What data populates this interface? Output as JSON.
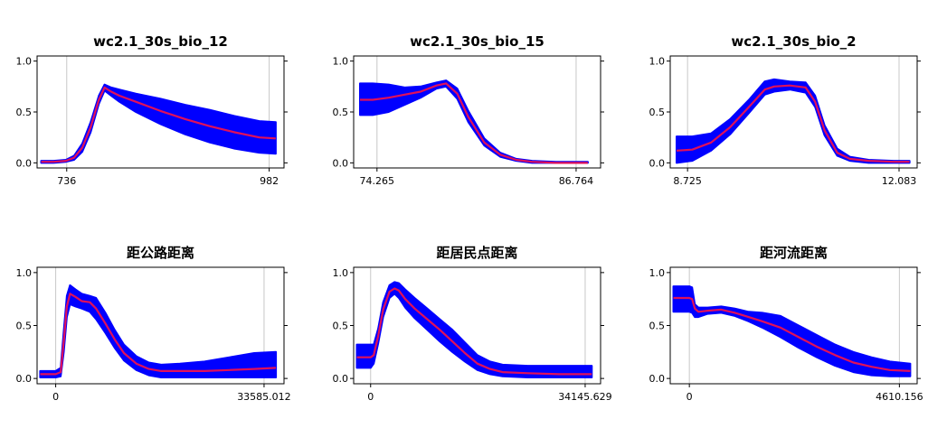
{
  "colors": {
    "band": "#0000ff",
    "mean": "#e0105a",
    "grid": "#c8c8c8"
  },
  "chart_data": [
    {
      "type": "area",
      "title": "wc2.1_30s_bio_12",
      "xlim": [
        700,
        1000
      ],
      "ylim": [
        -0.05,
        1.05
      ],
      "x_ticks": [
        {
          "v": 736,
          "label": "736"
        },
        {
          "v": 982,
          "label": "982"
        }
      ],
      "y_ticks": [
        {
          "v": 0,
          "label": "0.0"
        },
        {
          "v": 0.5,
          "label": "0.5"
        },
        {
          "v": 1,
          "label": "1.0"
        }
      ],
      "x": [
        705,
        720,
        735,
        745,
        755,
        765,
        775,
        782,
        790,
        800,
        820,
        850,
        880,
        910,
        940,
        970,
        990
      ],
      "mean": [
        0.01,
        0.01,
        0.02,
        0.05,
        0.15,
        0.35,
        0.62,
        0.74,
        0.7,
        0.66,
        0.6,
        0.51,
        0.43,
        0.36,
        0.3,
        0.25,
        0.24
      ],
      "lower": [
        0.0,
        0.0,
        0.01,
        0.03,
        0.11,
        0.3,
        0.58,
        0.71,
        0.66,
        0.6,
        0.5,
        0.38,
        0.28,
        0.2,
        0.14,
        0.1,
        0.09
      ],
      "upper": [
        0.02,
        0.02,
        0.03,
        0.07,
        0.19,
        0.4,
        0.66,
        0.77,
        0.74,
        0.72,
        0.68,
        0.63,
        0.57,
        0.52,
        0.46,
        0.41,
        0.4
      ]
    },
    {
      "type": "area",
      "title": "wc2.1_30s_bio_15",
      "xlim": [
        72.8,
        88.3
      ],
      "ylim": [
        -0.05,
        1.05
      ],
      "x_ticks": [
        {
          "v": 74.265,
          "label": "74.265"
        },
        {
          "v": 86.764,
          "label": "86.764"
        }
      ],
      "y_ticks": [
        {
          "v": 0,
          "label": "0.0"
        },
        {
          "v": 0.5,
          "label": "0.5"
        },
        {
          "v": 1,
          "label": "1.0"
        }
      ],
      "x": [
        73.2,
        74.0,
        75.0,
        76.0,
        77.0,
        78.0,
        78.6,
        79.3,
        80.0,
        81.0,
        82.0,
        83.0,
        84.0,
        85.5,
        87.5
      ],
      "mean": [
        0.62,
        0.62,
        0.64,
        0.67,
        0.7,
        0.76,
        0.78,
        0.68,
        0.45,
        0.2,
        0.08,
        0.03,
        0.01,
        0.0,
        0.0
      ],
      "lower": [
        0.47,
        0.47,
        0.5,
        0.57,
        0.64,
        0.73,
        0.75,
        0.63,
        0.4,
        0.17,
        0.06,
        0.02,
        0.0,
        0.0,
        0.0
      ],
      "upper": [
        0.78,
        0.78,
        0.77,
        0.74,
        0.75,
        0.79,
        0.81,
        0.73,
        0.51,
        0.24,
        0.1,
        0.04,
        0.02,
        0.01,
        0.01
      ]
    },
    {
      "type": "area",
      "title": "wc2.1_30s_bio_2",
      "xlim": [
        8.45,
        12.37
      ],
      "ylim": [
        -0.05,
        1.05
      ],
      "x_ticks": [
        {
          "v": 8.725,
          "label": "8.725"
        },
        {
          "v": 12.083,
          "label": "12.083"
        }
      ],
      "y_ticks": [
        {
          "v": 0,
          "label": "0.0"
        },
        {
          "v": 0.5,
          "label": "0.5"
        },
        {
          "v": 1,
          "label": "1.0"
        }
      ],
      "x": [
        8.55,
        8.8,
        9.1,
        9.4,
        9.7,
        9.95,
        10.1,
        10.35,
        10.6,
        10.75,
        10.9,
        11.1,
        11.3,
        11.6,
        12.0,
        12.25
      ],
      "mean": [
        0.12,
        0.13,
        0.2,
        0.35,
        0.55,
        0.72,
        0.75,
        0.76,
        0.74,
        0.6,
        0.32,
        0.1,
        0.04,
        0.02,
        0.01,
        0.01
      ],
      "lower": [
        0.0,
        0.02,
        0.12,
        0.28,
        0.49,
        0.67,
        0.7,
        0.72,
        0.69,
        0.55,
        0.27,
        0.07,
        0.02,
        0.0,
        0.0,
        0.0
      ],
      "upper": [
        0.26,
        0.26,
        0.29,
        0.43,
        0.62,
        0.8,
        0.82,
        0.8,
        0.79,
        0.66,
        0.37,
        0.14,
        0.06,
        0.03,
        0.02,
        0.02
      ]
    },
    {
      "type": "area",
      "title": "距公路距离",
      "xlim": [
        -3000,
        36800
      ],
      "ylim": [
        -0.05,
        1.05
      ],
      "x_ticks": [
        {
          "v": 0,
          "label": "0"
        },
        {
          "v": 33585.012,
          "label": "33585.012"
        }
      ],
      "y_ticks": [
        {
          "v": 0,
          "label": "0.0"
        },
        {
          "v": 0.5,
          "label": "0.5"
        },
        {
          "v": 1,
          "label": "1.0"
        }
      ],
      "x": [
        -2500,
        0,
        800,
        1300,
        1800,
        2300,
        3200,
        4200,
        5500,
        6500,
        8000,
        9500,
        11000,
        13000,
        15000,
        17000,
        20000,
        24000,
        28000,
        32000,
        35500
      ],
      "mean": [
        0.04,
        0.04,
        0.06,
        0.35,
        0.68,
        0.8,
        0.77,
        0.73,
        0.72,
        0.66,
        0.52,
        0.37,
        0.24,
        0.14,
        0.09,
        0.07,
        0.07,
        0.07,
        0.08,
        0.09,
        0.1
      ],
      "lower": [
        0.01,
        0.01,
        0.02,
        0.25,
        0.58,
        0.7,
        0.68,
        0.66,
        0.63,
        0.56,
        0.43,
        0.29,
        0.17,
        0.08,
        0.03,
        0.01,
        0.01,
        0.01,
        0.01,
        0.01,
        0.01
      ],
      "upper": [
        0.07,
        0.07,
        0.1,
        0.45,
        0.78,
        0.88,
        0.84,
        0.8,
        0.78,
        0.76,
        0.62,
        0.46,
        0.32,
        0.21,
        0.15,
        0.13,
        0.14,
        0.16,
        0.2,
        0.24,
        0.25
      ]
    },
    {
      "type": "area",
      "title": "距居民点距离",
      "xlim": [
        -2700,
        36600
      ],
      "ylim": [
        -0.05,
        1.05
      ],
      "x_ticks": [
        {
          "v": 0,
          "label": "0"
        },
        {
          "v": 34145.629,
          "label": "34145.629"
        }
      ],
      "y_ticks": [
        {
          "v": 0,
          "label": "0.0"
        },
        {
          "v": 0.5,
          "label": "0.5"
        },
        {
          "v": 1,
          "label": "1.0"
        }
      ],
      "x": [
        -2200,
        0,
        500,
        1200,
        2000,
        3000,
        3800,
        4500,
        5500,
        7000,
        9000,
        11000,
        13000,
        15000,
        17000,
        19000,
        21000,
        25000,
        30000,
        35200
      ],
      "mean": [
        0.2,
        0.2,
        0.22,
        0.4,
        0.65,
        0.82,
        0.85,
        0.83,
        0.75,
        0.66,
        0.56,
        0.46,
        0.35,
        0.24,
        0.14,
        0.09,
        0.06,
        0.05,
        0.04,
        0.04
      ],
      "lower": [
        0.1,
        0.1,
        0.14,
        0.33,
        0.58,
        0.76,
        0.8,
        0.76,
        0.67,
        0.57,
        0.46,
        0.35,
        0.25,
        0.16,
        0.08,
        0.04,
        0.02,
        0.01,
        0.01,
        0.01
      ],
      "upper": [
        0.32,
        0.32,
        0.32,
        0.47,
        0.72,
        0.88,
        0.91,
        0.9,
        0.84,
        0.76,
        0.66,
        0.56,
        0.46,
        0.34,
        0.22,
        0.16,
        0.13,
        0.12,
        0.12,
        0.12
      ]
    },
    {
      "type": "area",
      "title": "距河流距离",
      "xlim": [
        -420,
        5000
      ],
      "ylim": [
        -0.05,
        1.05
      ],
      "x_ticks": [
        {
          "v": 0,
          "label": "0"
        },
        {
          "v": 4610.156,
          "label": "4610.156"
        }
      ],
      "y_ticks": [
        {
          "v": 0,
          "label": "0.0"
        },
        {
          "v": 0.5,
          "label": "0.5"
        },
        {
          "v": 1,
          "label": "1.0"
        }
      ],
      "x": [
        -350,
        0,
        60,
        120,
        200,
        400,
        700,
        1000,
        1300,
        1600,
        2000,
        2400,
        2800,
        3200,
        3600,
        4000,
        4400,
        4850
      ],
      "mean": [
        0.76,
        0.76,
        0.75,
        0.66,
        0.63,
        0.64,
        0.65,
        0.62,
        0.58,
        0.54,
        0.48,
        0.39,
        0.3,
        0.22,
        0.15,
        0.11,
        0.08,
        0.07
      ],
      "lower": [
        0.63,
        0.63,
        0.62,
        0.58,
        0.58,
        0.61,
        0.62,
        0.59,
        0.54,
        0.48,
        0.39,
        0.29,
        0.2,
        0.12,
        0.06,
        0.03,
        0.02,
        0.02
      ],
      "upper": [
        0.87,
        0.87,
        0.86,
        0.7,
        0.67,
        0.67,
        0.68,
        0.66,
        0.63,
        0.62,
        0.59,
        0.5,
        0.41,
        0.32,
        0.25,
        0.2,
        0.16,
        0.14
      ]
    }
  ]
}
